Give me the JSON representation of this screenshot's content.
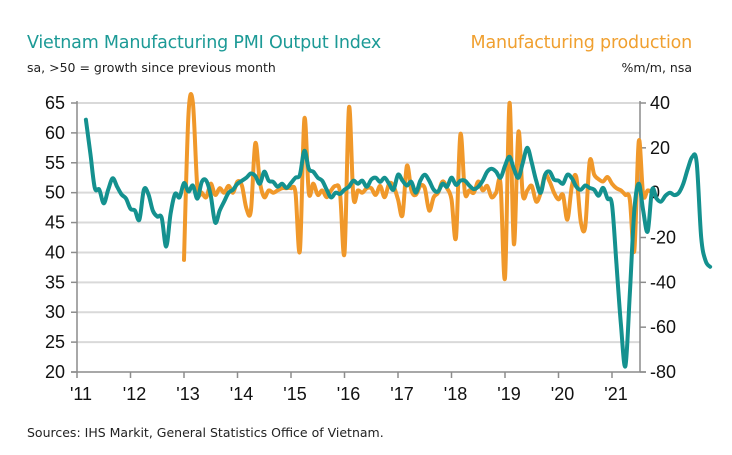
{
  "header": {
    "left_title": "Vietnam Manufacturing PMI Output Index",
    "left_subtitle": "sa, >50 = growth since previous month",
    "right_title": "Manufacturing production",
    "right_subtitle": "%m/m, nsa"
  },
  "footer": {
    "source": "Sources: IHS Markit, General Statistics Office of Vietnam."
  },
  "colors": {
    "pmi": "#14918f",
    "production": "#f0982a",
    "grid": "#d9d9d9",
    "axis": "#8c8c8c"
  },
  "chart_data": {
    "type": "line",
    "title": "Vietnam Manufacturing PMI Output Index vs Manufacturing production",
    "xlabel": "",
    "ylabel": "sa, >50 = growth since previous month",
    "y2label": "%m/m, nsa",
    "x_tick_labels": [
      "'11",
      "'12",
      "'13",
      "'14",
      "'15",
      "'16",
      "'17",
      "'18",
      "'19",
      "'20",
      "'21"
    ],
    "x_tick_years": [
      2011,
      2012,
      2013,
      2014,
      2015,
      2016,
      2017,
      2018,
      2019,
      2020,
      2021
    ],
    "x_range": [
      2011.0,
      2021.6
    ],
    "left_axis": {
      "ticks": [
        65,
        60,
        55,
        50,
        45,
        40,
        35,
        30,
        25,
        20
      ],
      "ylim": [
        20,
        65
      ]
    },
    "right_axis": {
      "ticks": [
        40,
        20,
        0,
        -20,
        -40,
        -60,
        -80
      ],
      "ylim": [
        -80,
        40
      ]
    },
    "grid": true,
    "legend": "titles at top-left (PMI, left axis) and top-right (production, right axis)",
    "series": [
      {
        "name": "Vietnam Manufacturing PMI Output Index",
        "axis": "left",
        "start": "2011-03",
        "frequency": "monthly",
        "values": [
          62.2,
          56.5,
          50.8,
          50.5,
          48.2,
          50.5,
          52.4,
          51.0,
          49.7,
          49.0,
          47.3,
          47.0,
          45.5,
          50.5,
          49.8,
          47.0,
          46.0,
          45.8,
          41.0,
          46.5,
          49.8,
          49.2,
          51.6,
          50.2,
          51.2,
          49.0,
          51.8,
          52.0,
          49.5,
          45.0,
          47.0,
          48.5,
          50.0,
          50.5,
          51.5,
          52.0,
          52.5,
          53.2,
          52.8,
          51.5,
          53.5,
          52.0,
          51.8,
          51.0,
          51.5,
          50.8,
          51.6,
          52.5,
          53.0,
          57.0,
          54.0,
          53.5,
          52.5,
          52.0,
          50.5,
          49.2,
          50.0,
          49.8,
          50.5,
          51.0,
          52.0,
          51.5,
          52.0,
          51.0,
          52.2,
          52.5,
          51.8,
          52.5,
          51.5,
          50.5,
          53.0,
          52.0,
          51.2,
          51.8,
          50.0,
          52.0,
          53.0,
          52.0,
          50.5,
          50.2,
          51.5,
          51.0,
          52.5,
          51.3,
          52.0,
          52.0,
          51.2,
          50.6,
          51.0,
          52.0,
          53.5,
          54.0,
          53.5,
          52.5,
          54.5,
          56.0,
          54.0,
          52.5,
          55.0,
          57.5,
          55.0,
          52.0,
          50.0,
          53.0,
          53.5,
          52.2,
          52.0,
          51.5,
          53.0,
          52.4,
          51.0,
          50.5,
          51.2,
          50.8,
          50.5,
          49.5,
          50.8,
          49.0,
          48.0,
          38.0,
          28.0,
          21.0,
          33.0,
          47.0,
          51.5,
          47.0,
          43.5,
          50.5,
          49.0,
          48.5,
          49.5,
          50.0,
          49.6,
          50.0,
          51.5,
          54.0,
          56.0,
          55.0,
          42.5,
          38.6,
          37.6
        ]
      },
      {
        "name": "Manufacturing production",
        "axis": "right",
        "start": "2013-01",
        "frequency": "monthly",
        "values": [
          -30,
          35,
          40,
          2,
          0,
          -2,
          4,
          -1,
          2,
          0,
          3,
          0,
          5,
          3,
          -7,
          -8,
          22,
          5,
          -2,
          1,
          0,
          1,
          2,
          2,
          2,
          0,
          -26,
          33,
          0,
          4,
          -1,
          1,
          -2,
          1,
          3,
          0,
          -27,
          38,
          -2,
          1,
          0,
          2,
          2,
          -1,
          3,
          -2,
          4,
          3,
          -3,
          -10,
          12,
          1,
          -1,
          3,
          2,
          -8,
          -2,
          0,
          5,
          2,
          -3,
          -20,
          26,
          0,
          1,
          0,
          5,
          1,
          3,
          -2,
          0,
          4,
          -38,
          40,
          -23,
          27,
          -1,
          1,
          3,
          -4,
          0,
          8,
          5,
          0,
          -3,
          -1,
          -12,
          3,
          7,
          -13,
          -15,
          14,
          8,
          6,
          5,
          7,
          4,
          2,
          1,
          -1,
          -3,
          -26,
          23,
          -1,
          1,
          0
        ]
      }
    ]
  }
}
